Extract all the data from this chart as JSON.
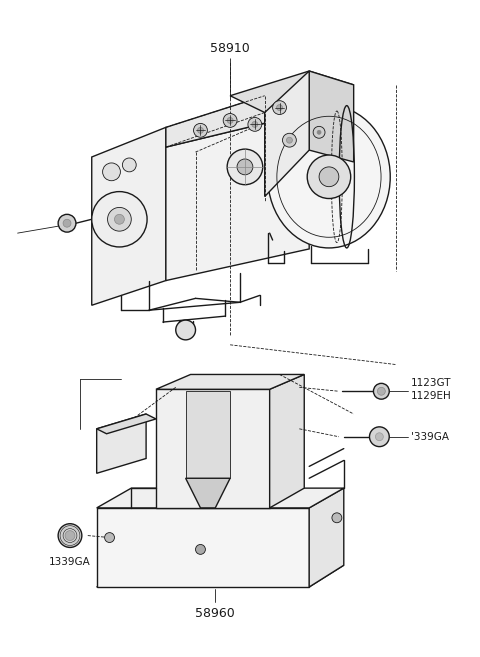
{
  "background_color": "#ffffff",
  "line_color": "#1a1a1a",
  "text_color": "#1a1a1a",
  "lw_main": 1.0,
  "lw_thin": 0.6,
  "upper_label": "58910",
  "lower_label": "58960",
  "label_1123": "1123GT\n1129EH",
  "label_339": "'339GA",
  "label_1339": "1339GA",
  "fig_w": 4.8,
  "fig_h": 6.57,
  "dpi": 100
}
